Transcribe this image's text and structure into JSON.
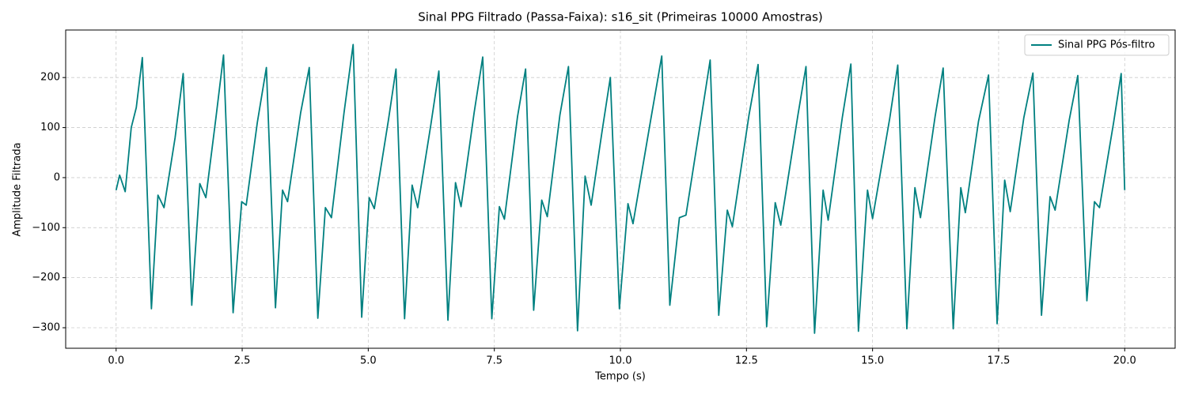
{
  "chart_data": {
    "type": "line",
    "title": "Sinal PPG Filtrado (Passa-Faixa): s16_sit (Primeiras 10000 Amostras)",
    "x_label": "Tempo (s)",
    "y_label": "Amplitude Filtrada",
    "x": [
      0.0,
      0.07,
      0.18,
      0.3,
      0.4,
      0.52,
      0.7,
      0.83,
      0.95,
      1.17,
      1.33,
      1.5,
      1.66,
      1.78,
      1.98,
      2.13,
      2.32,
      2.49,
      2.58,
      2.8,
      2.98,
      3.16,
      3.3,
      3.4,
      3.66,
      3.83,
      4.0,
      4.15,
      4.27,
      4.52,
      4.7,
      4.87,
      5.02,
      5.12,
      5.4,
      5.55,
      5.72,
      5.87,
      5.98,
      6.24,
      6.4,
      6.58,
      6.73,
      6.84,
      7.1,
      7.27,
      7.45,
      7.6,
      7.7,
      7.96,
      8.12,
      8.28,
      8.44,
      8.55,
      8.8,
      8.97,
      9.15,
      9.3,
      9.42,
      9.64,
      9.8,
      9.98,
      10.15,
      10.25,
      10.6,
      10.82,
      10.98,
      11.17,
      11.3,
      11.6,
      11.78,
      11.95,
      12.12,
      12.22,
      12.55,
      12.73,
      12.9,
      13.07,
      13.18,
      13.52,
      13.68,
      13.85,
      14.02,
      14.12,
      14.4,
      14.57,
      14.72,
      14.9,
      15.0,
      15.34,
      15.5,
      15.68,
      15.84,
      15.95,
      16.24,
      16.4,
      16.6,
      16.75,
      16.84,
      17.1,
      17.3,
      17.47,
      17.62,
      17.73,
      18.0,
      18.18,
      18.35,
      18.52,
      18.62,
      18.9,
      19.07,
      19.25,
      19.4,
      19.5,
      19.78,
      19.93,
      20.0
    ],
    "series": [
      {
        "name": "Sinal PPG Pós-filtro",
        "color": "#008080",
        "values": [
          -25,
          5,
          -28,
          100,
          140,
          240,
          -262,
          -35,
          -60,
          80,
          208,
          -255,
          -12,
          -40,
          120,
          245,
          -270,
          -48,
          -55,
          110,
          220,
          -260,
          -25,
          -48,
          130,
          220,
          -281,
          -60,
          -80,
          130,
          266,
          -279,
          -40,
          -62,
          115,
          217,
          -282,
          -15,
          -60,
          105,
          213,
          -285,
          -10,
          -58,
          130,
          241,
          -282,
          -58,
          -83,
          122,
          217,
          -265,
          -45,
          -78,
          125,
          222,
          -306,
          3,
          -55,
          95,
          200,
          -262,
          -52,
          -92,
          115,
          243,
          -255,
          -80,
          -75,
          118,
          235,
          -275,
          -65,
          -98,
          125,
          226,
          -298,
          -50,
          -95,
          125,
          222,
          -311,
          -25,
          -85,
          120,
          227,
          -307,
          -25,
          -82,
          118,
          225,
          -302,
          -20,
          -80,
          122,
          219,
          -302,
          -20,
          -70,
          112,
          205,
          -292,
          -5,
          -68,
          120,
          209,
          -275,
          -38,
          -65,
          115,
          204,
          -246,
          -48,
          -60,
          110,
          208,
          -25
        ]
      }
    ],
    "xlim": [
      -1.0,
      21.0
    ],
    "xticks": [
      {
        "value": 0,
        "label": "0.0"
      },
      {
        "value": 2.5,
        "label": "2.5"
      },
      {
        "value": 5,
        "label": "5.0"
      },
      {
        "value": 7.5,
        "label": "7.5"
      },
      {
        "value": 10,
        "label": "10.0"
      },
      {
        "value": 12.5,
        "label": "12.5"
      },
      {
        "value": 15,
        "label": "15.0"
      },
      {
        "value": 17.5,
        "label": "17.5"
      },
      {
        "value": 20,
        "label": "20.0"
      }
    ],
    "ylim": [
      -341,
      295
    ],
    "yticks": [
      {
        "value": -300,
        "label": "−300"
      },
      {
        "value": -200,
        "label": "−200"
      },
      {
        "value": -100,
        "label": "−100"
      },
      0,
      100,
      200
    ],
    "grid": true,
    "legend": "upper right"
  }
}
